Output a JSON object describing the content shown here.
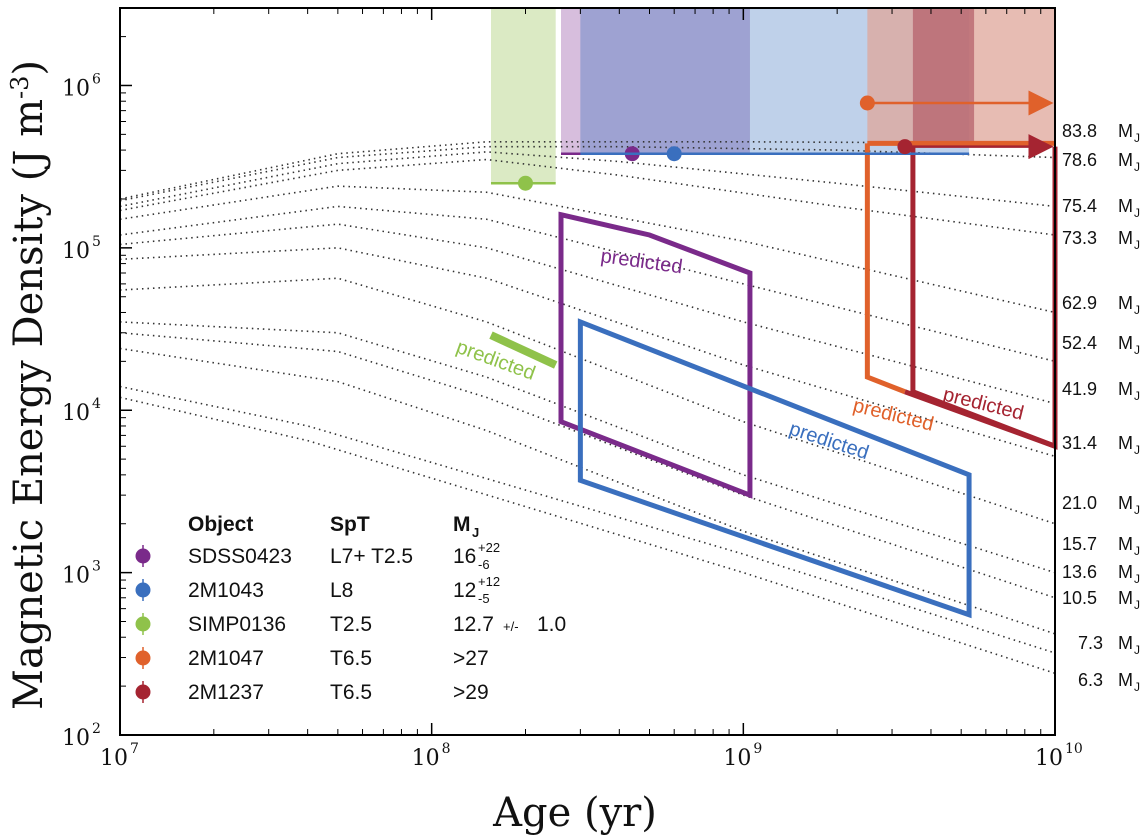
{
  "chart_data": {
    "type": "line",
    "xlabel": "Age   (yr)",
    "ylabel": "Magnetic Energy Density (J m-3)",
    "xscale": "log",
    "yscale": "log",
    "xlim": [
      10000000,
      10000000000
    ],
    "ylim": [
      100,
      3000000
    ],
    "x_ticks": [
      {
        "value": 10000000,
        "base": "10",
        "exp": "7"
      },
      {
        "value": 100000000,
        "base": "10",
        "exp": "8"
      },
      {
        "value": 1000000000,
        "base": "10",
        "exp": "9"
      },
      {
        "value": 10000000000,
        "base": "10",
        "exp": "10"
      }
    ],
    "y_ticks": [
      {
        "value": 100,
        "base": "10",
        "exp": "2"
      },
      {
        "value": 1000,
        "base": "10",
        "exp": "3"
      },
      {
        "value": 10000,
        "base": "10",
        "exp": "4"
      },
      {
        "value": 100000,
        "base": "10",
        "exp": "5"
      },
      {
        "value": 1000000,
        "base": "10",
        "exp": "6"
      }
    ],
    "mass_tracks": [
      {
        "label": "83.8",
        "x": [
          10000000,
          50000000,
          150000000,
          1000000000,
          10000000000
        ],
        "y": [
          200000,
          380000,
          450000,
          450000,
          440000
        ]
      },
      {
        "label": "78.6",
        "x": [
          10000000,
          50000000,
          150000000,
          400000000,
          2000000000,
          10000000000
        ],
        "y": [
          195000,
          360000,
          420000,
          420000,
          400000,
          360000
        ]
      },
      {
        "label": "75.4",
        "x": [
          10000000,
          50000000,
          150000000,
          400000000,
          2000000000,
          10000000000
        ],
        "y": [
          180000,
          330000,
          390000,
          340000,
          250000,
          180000
        ]
      },
      {
        "label": "73.3",
        "x": [
          10000000,
          50000000,
          150000000,
          400000000,
          2000000000,
          10000000000
        ],
        "y": [
          170000,
          300000,
          350000,
          280000,
          180000,
          120000
        ]
      },
      {
        "label": "62.9",
        "x": [
          10000000,
          50000000,
          150000000,
          1000000000,
          10000000000
        ],
        "y": [
          150000,
          240000,
          220000,
          110000,
          40000
        ]
      },
      {
        "label": "52.4",
        "x": [
          10000000,
          50000000,
          150000000,
          1000000000,
          10000000000
        ],
        "y": [
          120000,
          180000,
          150000,
          60000,
          20000
        ]
      },
      {
        "label": "41.9",
        "x": [
          10000000,
          50000000,
          150000000,
          1000000000,
          10000000000
        ],
        "y": [
          105000,
          140000,
          100000,
          35000,
          11000
        ]
      },
      {
        "label": "31.4",
        "x": [
          10000000,
          50000000,
          150000000,
          1000000000,
          10000000000
        ],
        "y": [
          85000,
          100000,
          65000,
          19000,
          5200
        ]
      },
      {
        "label": "21.0",
        "x": [
          10000000,
          50000000,
          150000000,
          1000000000,
          10000000000
        ],
        "y": [
          55000,
          65000,
          35000,
          8500,
          2000
        ]
      },
      {
        "label": "15.7",
        "x": [
          10000000,
          50000000,
          150000000,
          1000000000,
          10000000000
        ],
        "y": [
          35000,
          30000,
          16000,
          4000,
          1000
        ]
      },
      {
        "label": "13.6",
        "x": [
          10000000,
          50000000,
          150000000,
          1000000000,
          10000000000
        ],
        "y": [
          30000,
          23000,
          12000,
          3000,
          700
        ]
      },
      {
        "label": "10.5",
        "x": [
          10000000,
          50000000,
          150000000,
          1000000000,
          10000000000
        ],
        "y": [
          24000,
          15000,
          7500,
          1800,
          420
        ]
      },
      {
        "label": "7.3",
        "x": [
          10000000,
          10000000000
        ],
        "y": [
          0,
          0
        ]
      },
      {
        "label": "6.3",
        "x": [
          10000000,
          10000000000
        ],
        "y": [
          0,
          0
        ]
      }
    ],
    "age_bands": [
      {
        "name": "SIMP0136",
        "x": [
          155000000,
          250000000
        ],
        "y": [
          250000,
          3000000
        ],
        "color": "#cfe3b0"
      },
      {
        "name": "SDSS0423",
        "x": [
          260000000,
          1050000000
        ],
        "y": [
          380000,
          3000000
        ],
        "color": "#c9a8d2"
      },
      {
        "name": "2M1043",
        "x": [
          300000000,
          5300000000
        ],
        "y": [
          380000,
          3000000
        ],
        "color": "#a9c2e3"
      },
      {
        "name": "2M1047",
        "x": [
          2500000000,
          10000000000
        ],
        "y": [
          440000,
          3000000
        ],
        "color": "#dfa59a"
      },
      {
        "name": "2M1237",
        "x": [
          3500000000,
          5500000000
        ],
        "y": [
          420000,
          3000000
        ],
        "color": "#b5616b"
      }
    ],
    "series": [
      {
        "name": "SDSS0423",
        "spt": "L7+ T2.5",
        "mass": "16",
        "mass_err_up": "+22",
        "mass_err_down": "-6",
        "color": "#7a2a8a",
        "point": [
          440000000,
          380000
        ],
        "range_x": [
          260000000,
          1050000000
        ],
        "range_y": 380000
      },
      {
        "name": "2M1043",
        "spt": "L8",
        "mass": "12",
        "mass_err_up": "+12",
        "mass_err_down": "-5",
        "color": "#3a6fbe",
        "point": [
          600000000,
          380000
        ],
        "range_x": [
          300000000,
          5300000000
        ],
        "range_y": 380000
      },
      {
        "name": "SIMP0136",
        "spt": "T2.5",
        "mass": "12.7",
        "mass_pm": "+/-",
        "mass_err": "1.0",
        "color": "#8fc24a",
        "point": [
          200000000,
          250000
        ],
        "range_x": [
          155000000,
          250000000
        ],
        "range_y": 250000
      },
      {
        "name": "2M1047",
        "spt": "T6.5",
        "mass": ">27",
        "color": "#e0612b",
        "point": [
          2500000000,
          780000
        ],
        "arrow_to": 10000000000
      },
      {
        "name": "2M1237",
        "spt": "T6.5",
        "mass": ">29",
        "color": "#a52431",
        "point": [
          3300000000,
          420000
        ],
        "arrow_to": 10000000000
      }
    ],
    "predicted_regions": [
      {
        "object": "SDSS0423",
        "label": "predicted",
        "color": "#7a2a8a",
        "x": [
          260000000,
          500000000,
          1050000000,
          1050000000,
          260000000
        ],
        "y": [
          160000,
          120000,
          70000,
          3000,
          8500
        ]
      },
      {
        "object": "2M1043",
        "label": "predicted",
        "color": "#3a6fbe",
        "x": [
          300000000,
          5300000000,
          5300000000,
          300000000
        ],
        "y": [
          35000,
          4000,
          550,
          3700
        ]
      },
      {
        "object": "SIMP0136",
        "label": "predicted",
        "color": "#8fc24a",
        "x": [
          155000000,
          250000000
        ],
        "y": [
          29000,
          19000
        ]
      },
      {
        "object": "2M1047",
        "label": "predicted",
        "color": "#e0612b",
        "x": [
          2500000000,
          2500000000,
          3300000000
        ],
        "y": [
          440000,
          16000,
          13000
        ]
      },
      {
        "object": "2M1237",
        "label": "predicted",
        "color": "#a52431",
        "x": [
          3500000000,
          3500000000,
          10000000000,
          10000000000
        ],
        "y": [
          420000,
          13000,
          6000,
          420000
        ]
      }
    ],
    "legend": {
      "placement": "bottom-left",
      "headers": {
        "object": "Object",
        "spt": "SpT",
        "mass": "M",
        "mass_sub": "J"
      }
    },
    "mass_unit": "M",
    "mass_unit_sub": "J"
  }
}
